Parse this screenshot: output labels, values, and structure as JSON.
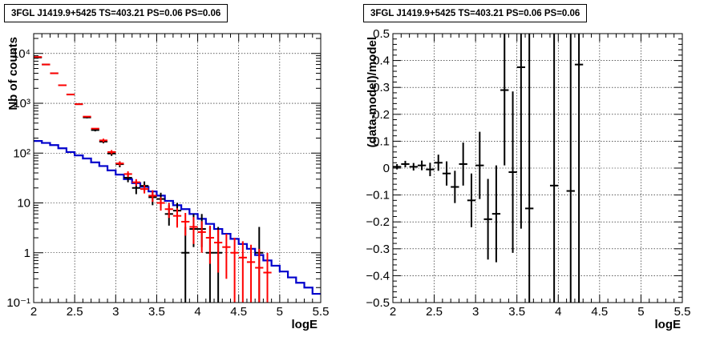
{
  "chart_data": [
    {
      "type": "line",
      "title": "3FGL J1419.9+5425 TS=403.21 PS=0.06 PS=0.06",
      "xlabel": "logE",
      "ylabel": "Nb of counts",
      "xlim": [
        2,
        5.5
      ],
      "ylim": [
        0.1,
        25000
      ],
      "yscale": "log",
      "grid": true,
      "x_ticks": [
        "2",
        "2.5",
        "3",
        "3.5",
        "4",
        "4.5",
        "5",
        "5.5"
      ],
      "y_ticks": [
        {
          "value": 0.1,
          "label": "10⁻¹"
        },
        {
          "value": 1,
          "label": "1"
        },
        {
          "value": 10,
          "label": "10"
        },
        {
          "value": 100,
          "label": "10²"
        },
        {
          "value": 1000,
          "label": "10³"
        },
        {
          "value": 10000,
          "label": "10⁴"
        }
      ],
      "bin_width": 0.1,
      "bin_centers": [
        2.05,
        2.15,
        2.25,
        2.35,
        2.45,
        2.55,
        2.65,
        2.75,
        2.85,
        2.95,
        3.05,
        3.15,
        3.25,
        3.35,
        3.45,
        3.55,
        3.65,
        3.75,
        3.85,
        3.95,
        4.05,
        4.15,
        4.25,
        4.35,
        4.45,
        4.55,
        4.65,
        4.75,
        4.85,
        4.95,
        5.05,
        5.15,
        5.25,
        5.35,
        5.45
      ],
      "series": [
        {
          "color": "#0000cc",
          "style": "step",
          "values": [
            175,
            160,
            145,
            125,
            105,
            90,
            78,
            65,
            55,
            45,
            37,
            30,
            25,
            21,
            17,
            14,
            11,
            9,
            7.5,
            6,
            4.8,
            3.8,
            3,
            2.4,
            1.9,
            1.5,
            1.2,
            0.9,
            0.7,
            0.55,
            0.42,
            0.32,
            0.25,
            0.2,
            0.15
          ]
        },
        {
          "color": "#ff0000",
          "style": "points",
          "x": [
            2.05,
            2.15,
            2.25,
            2.35,
            2.45,
            2.55,
            2.65,
            2.75,
            2.85,
            2.95,
            3.05,
            3.15,
            3.25,
            3.35,
            3.45,
            3.55,
            3.65,
            3.75,
            3.85,
            3.95,
            4.05,
            4.15,
            4.25,
            4.35,
            4.45,
            4.55,
            4.65,
            4.75,
            4.85
          ],
          "y": [
            8500,
            6000,
            4000,
            2300,
            1500,
            960,
            540,
            310,
            180,
            105,
            62,
            38,
            26,
            19,
            14,
            10,
            7.5,
            5.5,
            4.2,
            3.3,
            2.6,
            2.0,
            1.6,
            1.3,
            1.0,
            0.8,
            0.65,
            0.5,
            0.4
          ],
          "err_low": [
            0,
            0,
            0,
            0,
            0,
            0,
            0,
            0,
            15,
            10,
            6,
            5,
            4,
            3.5,
            3.5,
            3,
            2.5,
            2.3,
            2.0,
            1.8,
            1.6,
            1.4,
            1.2,
            1.0,
            0.9,
            0.75,
            0.6,
            0.49,
            0.39
          ],
          "err_high": [
            0,
            0,
            0,
            0,
            0,
            0,
            0,
            0,
            15,
            10,
            6,
            5,
            4,
            4,
            4,
            3,
            2.5,
            2.3,
            2.1,
            1.9,
            1.7,
            1.5,
            1.3,
            1.1,
            1.0,
            0.9,
            0.8,
            0.7,
            0.6
          ]
        },
        {
          "color": "#000000",
          "style": "points",
          "x": [
            2.05,
            2.15,
            2.25,
            2.35,
            2.45,
            2.55,
            2.65,
            2.75,
            2.85,
            2.95,
            3.05,
            3.15,
            3.25,
            3.35,
            3.45,
            3.55,
            3.65,
            3.75,
            3.85,
            3.95,
            4.05,
            4.15,
            4.25,
            4.75
          ],
          "y": [
            8300,
            6000,
            4000,
            2300,
            1500,
            960,
            520,
            290,
            170,
            98,
            60,
            32,
            20,
            22,
            13,
            12,
            6,
            7,
            1,
            3,
            3,
            1,
            1,
            1
          ],
          "err_low": [
            90,
            80,
            60,
            50,
            40,
            30,
            22,
            17,
            13,
            10,
            8,
            6,
            5,
            5,
            4,
            4,
            2.5,
            3,
            0.9,
            1.7,
            1.7,
            0.9,
            0.9,
            0.9
          ],
          "err_high": [
            90,
            80,
            60,
            50,
            40,
            30,
            22,
            17,
            13,
            10,
            8,
            6,
            5,
            5,
            4,
            4,
            3,
            3,
            2.3,
            3,
            3,
            2.3,
            2.3,
            2.3
          ]
        }
      ]
    },
    {
      "type": "scatter",
      "title": "3FGL J1419.9+5425 TS=403.21 PS=0.06 PS=0.06",
      "xlabel": "logE",
      "ylabel": "(data-model)/model",
      "xlim": [
        2,
        5.5
      ],
      "ylim": [
        -0.5,
        0.5
      ],
      "grid": true,
      "x_ticks": [
        "2",
        "2.5",
        "3",
        "3.5",
        "4",
        "4.5",
        "5",
        "5.5"
      ],
      "y_ticks": [
        "−0.5",
        "−0.4",
        "−0.3",
        "−0.2",
        "−0.1",
        "0",
        "0.1",
        "0.2",
        "0.3",
        "0.4",
        "0.5"
      ],
      "series": [
        {
          "color": "#000000",
          "x": [
            2.05,
            2.15,
            2.25,
            2.35,
            2.45,
            2.55,
            2.65,
            2.75,
            2.85,
            2.95,
            3.05,
            3.15,
            3.25,
            3.35,
            3.45,
            3.55,
            3.65,
            3.95,
            4.15,
            4.25
          ],
          "y": [
            0.005,
            0.015,
            0.005,
            0.01,
            -0.005,
            0.02,
            -0.02,
            -0.07,
            0.015,
            -0.12,
            0.01,
            -0.19,
            -0.17,
            0.29,
            -0.015,
            0.375,
            -0.15,
            -0.065,
            -0.085,
            0.385
          ],
          "err": [
            0.01,
            0.012,
            0.014,
            0.018,
            0.025,
            0.03,
            0.045,
            0.06,
            0.08,
            0.1,
            0.125,
            0.15,
            0.18,
            0.28,
            0.3,
            0.6,
            1.2,
            1.6,
            1.7,
            1.7
          ]
        }
      ]
    }
  ]
}
